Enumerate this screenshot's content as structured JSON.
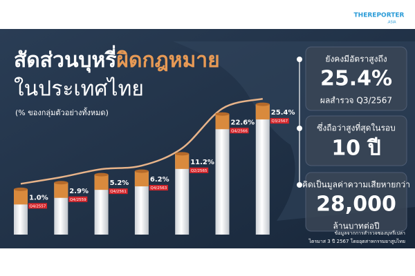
{
  "chart_data": {
    "type": "bar",
    "title": [
      "สัดส่วนบุหรี่",
      "ผิดกฎหมาย",
      "ในประเทศไทย"
    ],
    "subtitle": "(% ของกลุ่มตัวอย่างทั้งหมด)",
    "categories": [
      "Q4/2557",
      "Q4/2559",
      "Q4/2561",
      "Q4/2563",
      "Q2/2565",
      "Q4/2566",
      "Q3/2567"
    ],
    "values": [
      1.0,
      2.9,
      5.2,
      6.2,
      11.2,
      22.6,
      25.4
    ],
    "value_labels": [
      "1.0%",
      "2.9%",
      "5.2%",
      "6.2%",
      "11.2%",
      "22.6%",
      "25.4%"
    ],
    "ylim": [
      -12,
      28
    ],
    "filter_color": "#d98a3d",
    "line_color": "#e8b48a",
    "tag_color": "#d7262b",
    "panels": [
      {
        "lines": [
          "ยังคงมีอัตราสูงถึง",
          "25.4%",
          "ผลสำรวจ Q3/2567"
        ]
      },
      {
        "lines": [
          "ซึ่งถือว่าสูงที่สุดในรอบ",
          "10 ปี"
        ]
      },
      {
        "lines": [
          "คิดเป็นมูลค่าความเสียหายกว่า",
          "28,000",
          "ล้านบาทต่อปี"
        ]
      }
    ],
    "source": [
      "ข้อมูลจากการสำรวจซองบุหรี่เปล่า",
      "ไตรมาส 3 ปี 2567 โดยอุตสาหกรรมยาสูบไทย"
    ],
    "logo": [
      "THEREPORTER",
      ".ASIA"
    ]
  }
}
